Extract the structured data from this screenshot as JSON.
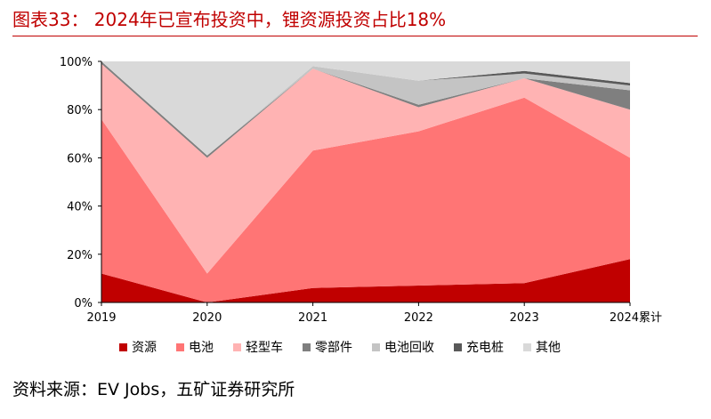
{
  "title": "图表33： 2024年已宣布投资中，锂资源投资占比18%",
  "source": "资料来源：EV Jobs，五矿证券研究所",
  "chart_data": {
    "type": "area",
    "stacked": true,
    "normalized": true,
    "categories": [
      "2019",
      "2020",
      "2021",
      "2022",
      "2023",
      "2024累计"
    ],
    "ylim": [
      0,
      100
    ],
    "y_ticks": [
      "0%",
      "20%",
      "40%",
      "60%",
      "80%",
      "100%"
    ],
    "grid": false,
    "legend_position": "bottom",
    "series": [
      {
        "name": "资源",
        "color": "#c00000",
        "values": [
          12,
          0,
          6,
          7,
          8,
          18
        ]
      },
      {
        "name": "电池",
        "color": "#ff7575",
        "values": [
          64,
          12,
          57,
          64,
          77,
          42
        ]
      },
      {
        "name": "轻型车",
        "color": "#ffb3b3",
        "values": [
          23,
          48,
          34,
          10,
          8,
          20
        ]
      },
      {
        "name": "零部件",
        "color": "#7f7f7f",
        "values": [
          1,
          1,
          0,
          1,
          0,
          8
        ]
      },
      {
        "name": "电池回收",
        "color": "#c4c4c4",
        "values": [
          0,
          0,
          1,
          10,
          2,
          2
        ]
      },
      {
        "name": "充电桩",
        "color": "#595959",
        "values": [
          0,
          0,
          0,
          0,
          1,
          1
        ]
      },
      {
        "name": "其他",
        "color": "#d9d9d9",
        "values": [
          0,
          39,
          2,
          8,
          4,
          9
        ]
      }
    ]
  }
}
